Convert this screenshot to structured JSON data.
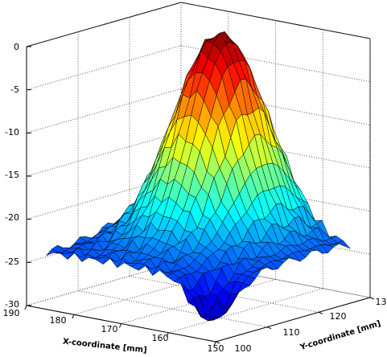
{
  "chart_data": {
    "type": "surface",
    "title": "",
    "xlabel": "X-coordinate [mm]",
    "ylabel": "Y-coordinate [mm]",
    "zlabel": "",
    "colormap": "jet",
    "grid": true,
    "x_ticks": [
      "150",
      "160",
      "170",
      "180",
      "190"
    ],
    "y_ticks": [
      "100",
      "110",
      "120",
      "130"
    ],
    "z_ticks": [
      "0",
      "-5",
      "-10",
      "-15",
      "-20",
      "-25",
      "-30"
    ],
    "xlim": [
      150,
      190
    ],
    "ylim": [
      100,
      130
    ],
    "zlim": [
      -30,
      0
    ],
    "peak": {
      "x": 172,
      "y": 121,
      "z": 0
    },
    "min_point": {
      "x": 155,
      "y": 104,
      "z": -28
    }
  }
}
